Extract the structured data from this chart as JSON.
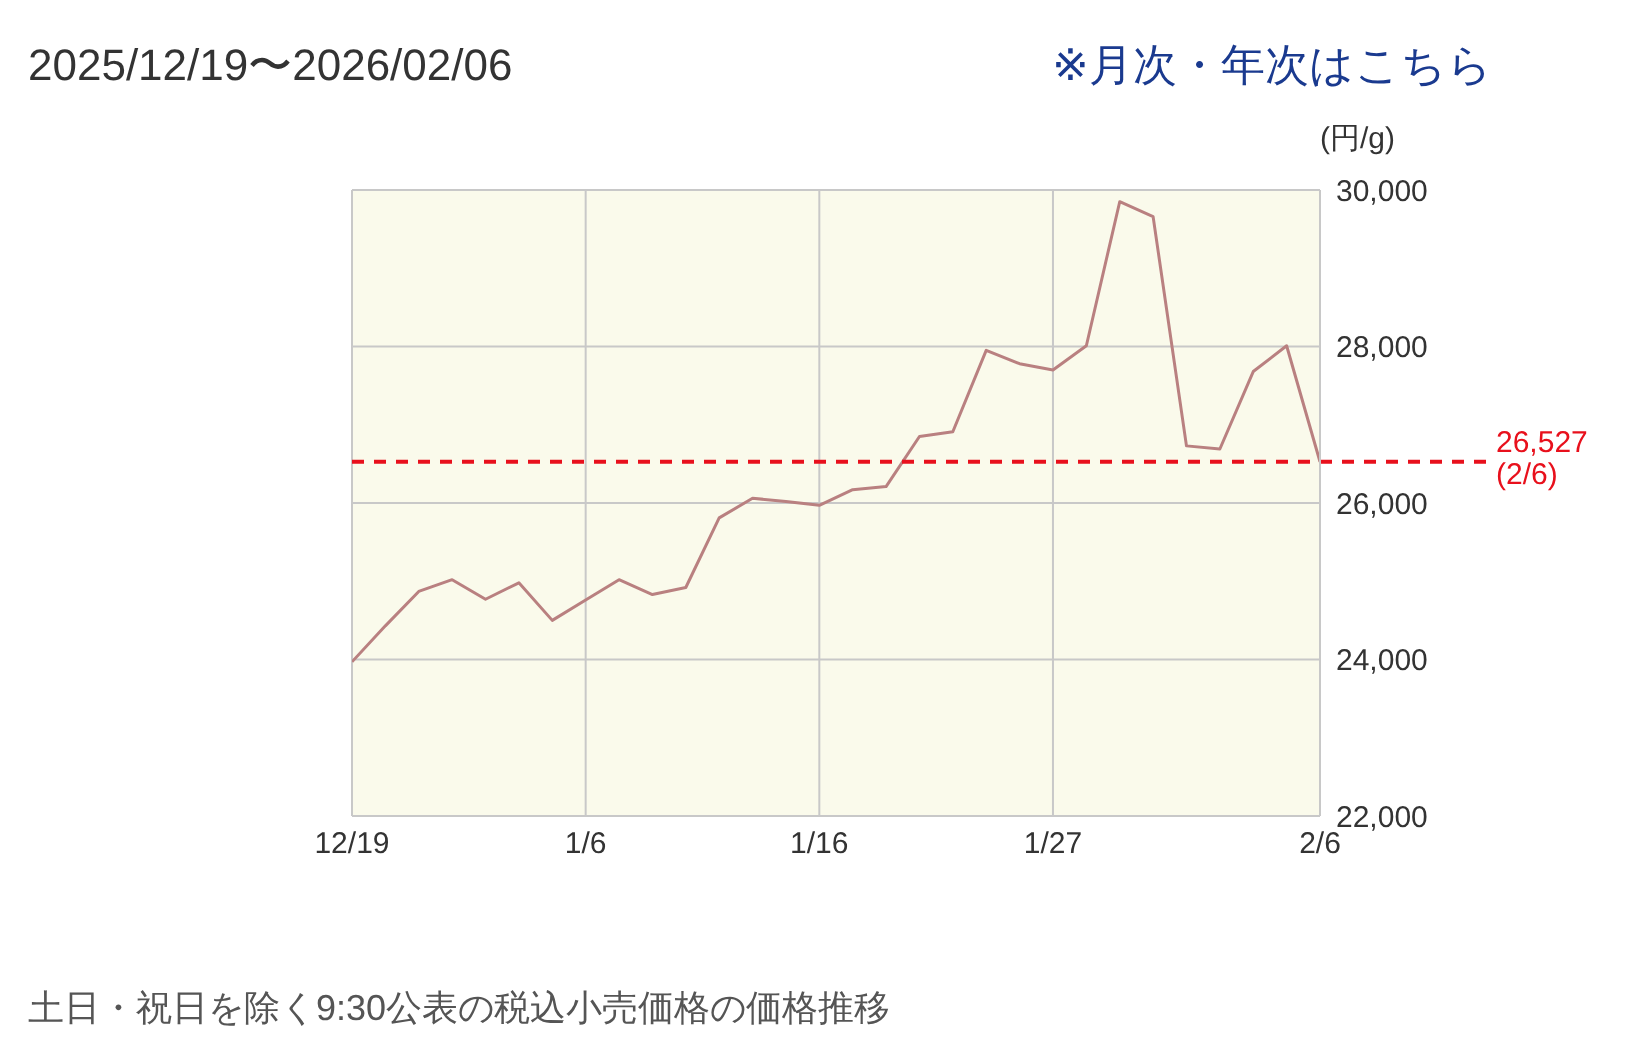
{
  "chart_data": {
    "type": "line",
    "title": "2025/12/19〜2026/02/06",
    "ylabel": "(円/g)",
    "annotations": [
      "※月次・年次はこちら",
      "土日・祝日を除く9:30公表の税込小売価格の価格推移"
    ],
    "categories": [
      "12/19",
      null,
      null,
      null,
      null,
      null,
      null,
      "1/6",
      null,
      null,
      null,
      null,
      null,
      null,
      "1/16",
      null,
      null,
      null,
      null,
      null,
      null,
      "1/27",
      null,
      null,
      null,
      null,
      null,
      null,
      null,
      "2/6"
    ],
    "series": [
      {
        "color": "#b98080",
        "values": [
          23970,
          24430,
          24870,
          25020,
          24770,
          24980,
          24500,
          24760,
          25020,
          24830,
          24920,
          25810,
          26060,
          26020,
          25970,
          26170,
          26210,
          26850,
          26910,
          27950,
          27780,
          27700,
          28010,
          29850,
          29660,
          26730,
          26690,
          27680,
          28010,
          26527
        ]
      }
    ],
    "ylim": [
      22000,
      30000
    ],
    "yticks": [
      {
        "value": 22000,
        "label": "22,000"
      },
      {
        "value": 24000,
        "label": "24,000"
      },
      {
        "value": 26000,
        "label": "26,000"
      },
      {
        "value": 28000,
        "label": "28,000"
      },
      {
        "value": 30000,
        "label": "30,000"
      }
    ],
    "ref_lines": [
      {
        "axis": "y",
        "value": 26527,
        "label": "26,527\n(2/6)",
        "color": "#e8101c",
        "line_style": "dashed"
      }
    ],
    "grid": true,
    "marker": "none",
    "line_style": "solid"
  }
}
